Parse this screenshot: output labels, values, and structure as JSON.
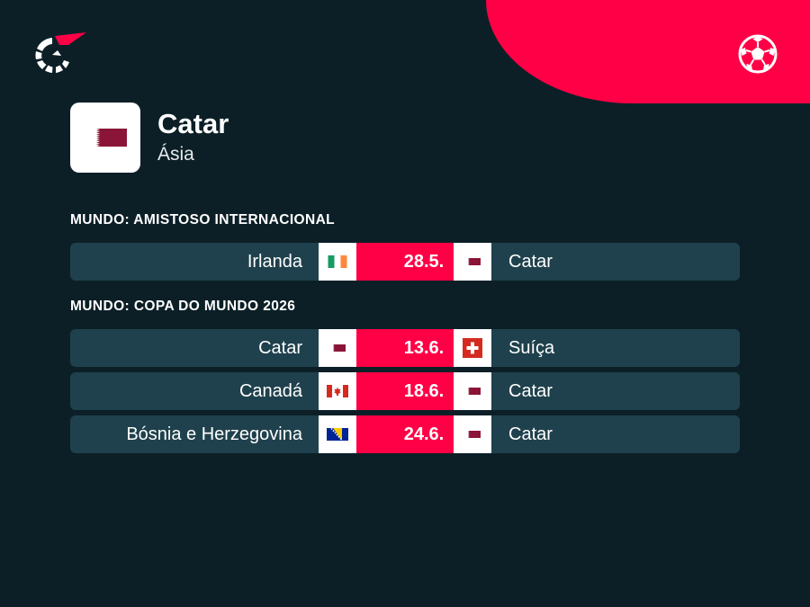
{
  "brand": {
    "logo_icon": "flashscore-logo-icon",
    "sport_icon": "soccer-ball-icon",
    "accent": "#ff0046",
    "background": "#0c1f27",
    "row": "#1f414d"
  },
  "team": {
    "name": "Catar",
    "region": "Ásia",
    "flag": "qatar"
  },
  "sections": [
    {
      "title": "MUNDO: AMISTOSO INTERNACIONAL",
      "matches": [
        {
          "home": "Irlanda",
          "home_flag": "ireland",
          "date": "28.5.",
          "away": "Catar",
          "away_flag": "qatar"
        }
      ]
    },
    {
      "title": "MUNDO: COPA DO MUNDO 2026",
      "matches": [
        {
          "home": "Catar",
          "home_flag": "qatar",
          "date": "13.6.",
          "away": "Suíça",
          "away_flag": "switzerland"
        },
        {
          "home": "Canadá",
          "home_flag": "canada",
          "date": "18.6.",
          "away": "Catar",
          "away_flag": "qatar"
        },
        {
          "home": "Bósnia e Herzegovina",
          "home_flag": "bosnia",
          "date": "24.6.",
          "away": "Catar",
          "away_flag": "qatar"
        }
      ]
    }
  ]
}
